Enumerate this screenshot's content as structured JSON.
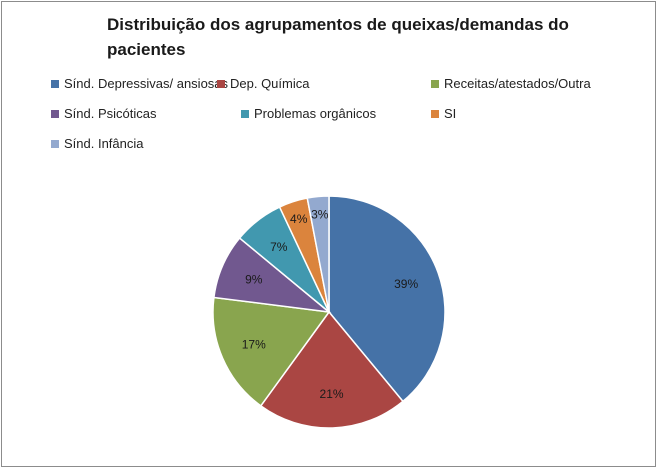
{
  "chart_data": {
    "type": "pie",
    "title": "Distribuição dos agrupamentos de queixas/demandas do pacientes",
    "legend_position": "top",
    "slices": [
      {
        "label": "Sínd. Depressivas/ ansiosas",
        "value": 39,
        "display": "39%",
        "color": "#4572a7"
      },
      {
        "label": "Dep. Química",
        "value": 21,
        "display": "21%",
        "color": "#aa4643"
      },
      {
        "label": "Receitas/atestados/Outra",
        "value": 17,
        "display": "17%",
        "color": "#89a54e"
      },
      {
        "label": "Sínd. Psicóticas",
        "value": 9,
        "display": "9%",
        "color": "#71588f"
      },
      {
        "label": "Problemas orgânicos",
        "value": 7,
        "display": "7%",
        "color": "#4198af"
      },
      {
        "label": "SI",
        "value": 4,
        "display": "4%",
        "color": "#db843d"
      },
      {
        "label": "Sínd. Infância",
        "value": 3,
        "display": "3%",
        "color": "#93a9cf"
      }
    ]
  }
}
